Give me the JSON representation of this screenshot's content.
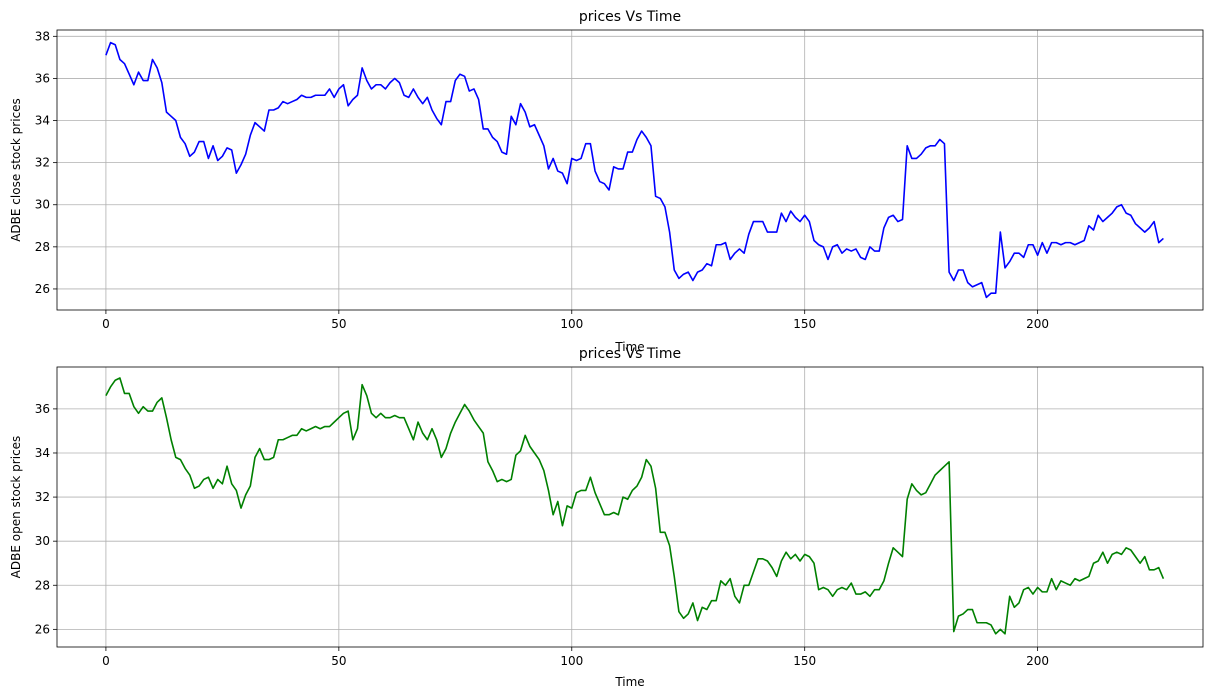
{
  "chart_data": [
    {
      "type": "line",
      "title": "prices Vs Time",
      "xlabel": "Time",
      "ylabel": "ADBE close stock prices",
      "xlim": [
        -10.5,
        235.5
      ],
      "ylim": [
        25.0,
        38.3
      ],
      "xticks": [
        0,
        50,
        100,
        150,
        200
      ],
      "yticks": [
        26,
        28,
        30,
        32,
        34,
        36,
        38
      ],
      "grid": true,
      "series": [
        {
          "color": "#0000ff",
          "x_start": 0,
          "values": [
            37.1,
            37.7,
            37.6,
            36.9,
            36.7,
            36.2,
            35.7,
            36.3,
            35.9,
            35.9,
            36.9,
            36.5,
            35.8,
            34.4,
            34.2,
            34.0,
            33.2,
            32.9,
            32.3,
            32.5,
            33.0,
            33.0,
            32.2,
            32.8,
            32.1,
            32.3,
            32.7,
            32.6,
            31.5,
            31.9,
            32.4,
            33.3,
            33.9,
            33.7,
            33.5,
            34.5,
            34.5,
            34.6,
            34.9,
            34.8,
            34.9,
            35.0,
            35.2,
            35.1,
            35.1,
            35.2,
            35.2,
            35.2,
            35.5,
            35.1,
            35.5,
            35.7,
            34.7,
            35.0,
            35.2,
            36.5,
            35.9,
            35.5,
            35.7,
            35.7,
            35.5,
            35.8,
            36.0,
            35.8,
            35.2,
            35.1,
            35.5,
            35.1,
            34.8,
            35.1,
            34.5,
            34.1,
            33.8,
            34.9,
            34.9,
            35.9,
            36.2,
            36.1,
            35.4,
            35.5,
            35.0,
            33.6,
            33.6,
            33.2,
            33.0,
            32.5,
            32.4,
            34.2,
            33.8,
            34.8,
            34.4,
            33.7,
            33.8,
            33.3,
            32.8,
            31.7,
            32.2,
            31.6,
            31.5,
            31.0,
            32.2,
            32.1,
            32.2,
            32.9,
            32.9,
            31.6,
            31.1,
            31.0,
            30.7,
            31.8,
            31.7,
            31.7,
            32.5,
            32.5,
            33.1,
            33.5,
            33.2,
            32.8,
            30.4,
            30.3,
            29.9,
            28.7,
            26.9,
            26.5,
            26.7,
            26.8,
            26.4,
            26.8,
            26.9,
            27.2,
            27.1,
            28.1,
            28.1,
            28.2,
            27.4,
            27.7,
            27.9,
            27.7,
            28.6,
            29.2,
            29.2,
            29.2,
            28.7,
            28.7,
            28.7,
            29.6,
            29.2,
            29.7,
            29.4,
            29.2,
            29.5,
            29.2,
            28.3,
            28.1,
            28.0,
            27.4,
            28.0,
            28.1,
            27.7,
            27.9,
            27.8,
            27.9,
            27.5,
            27.4,
            28.0,
            27.8,
            27.8,
            28.9,
            29.4,
            29.5,
            29.2,
            29.3,
            32.8,
            32.2,
            32.2,
            32.4,
            32.7,
            32.8,
            32.8,
            33.1,
            32.9,
            26.8,
            26.4,
            26.9,
            26.9,
            26.3,
            26.1,
            26.2,
            26.3,
            25.6,
            25.8,
            25.8,
            28.7,
            27.0,
            27.3,
            27.7,
            27.7,
            27.5,
            28.1,
            28.1,
            27.6,
            28.2,
            27.7,
            28.2,
            28.2,
            28.1,
            28.2,
            28.2,
            28.1,
            28.2,
            28.3,
            29.0,
            28.8,
            29.5,
            29.2,
            29.4,
            29.6,
            29.9,
            30.0,
            29.6,
            29.5,
            29.1,
            28.9,
            28.7,
            28.9,
            29.2,
            28.2,
            28.4
          ]
        }
      ]
    },
    {
      "type": "line",
      "title": "prices Vs Time",
      "xlabel": "Time",
      "ylabel": "ADBE open stock prices",
      "xlim": [
        -10.5,
        235.5
      ],
      "ylim": [
        25.2,
        37.9
      ],
      "xticks": [
        0,
        50,
        100,
        150,
        200
      ],
      "yticks": [
        26,
        28,
        30,
        32,
        34,
        36
      ],
      "grid": true,
      "series": [
        {
          "color": "#008000",
          "x_start": 0,
          "values": [
            36.6,
            37.0,
            37.3,
            37.4,
            36.7,
            36.7,
            36.1,
            35.8,
            36.1,
            35.9,
            35.9,
            36.3,
            36.5,
            35.6,
            34.6,
            33.8,
            33.7,
            33.3,
            33.0,
            32.4,
            32.5,
            32.8,
            32.9,
            32.4,
            32.8,
            32.6,
            33.4,
            32.6,
            32.3,
            31.5,
            32.1,
            32.5,
            33.8,
            34.2,
            33.7,
            33.7,
            33.8,
            34.6,
            34.6,
            34.7,
            34.8,
            34.8,
            35.1,
            35.0,
            35.1,
            35.2,
            35.1,
            35.2,
            35.2,
            35.4,
            35.6,
            35.8,
            35.9,
            34.6,
            35.1,
            37.1,
            36.6,
            35.8,
            35.6,
            35.8,
            35.6,
            35.6,
            35.7,
            35.6,
            35.6,
            35.1,
            34.6,
            35.4,
            34.9,
            34.6,
            35.1,
            34.6,
            33.8,
            34.2,
            34.9,
            35.4,
            35.8,
            36.2,
            35.9,
            35.5,
            35.2,
            34.9,
            33.6,
            33.2,
            32.7,
            32.8,
            32.7,
            32.8,
            33.9,
            34.1,
            34.8,
            34.3,
            34.0,
            33.7,
            33.2,
            32.3,
            31.2,
            31.8,
            30.7,
            31.6,
            31.5,
            32.2,
            32.3,
            32.3,
            32.9,
            32.2,
            31.7,
            31.2,
            31.2,
            31.3,
            31.2,
            32.0,
            31.9,
            32.3,
            32.5,
            32.9,
            33.7,
            33.4,
            32.4,
            30.4,
            30.4,
            29.8,
            28.4,
            26.8,
            26.5,
            26.7,
            27.2,
            26.4,
            27.0,
            26.9,
            27.3,
            27.3,
            28.2,
            28.0,
            28.3,
            27.5,
            27.2,
            28.0,
            28.0,
            28.6,
            29.2,
            29.2,
            29.1,
            28.8,
            28.4,
            29.1,
            29.5,
            29.2,
            29.4,
            29.1,
            29.4,
            29.3,
            29.0,
            27.8,
            27.9,
            27.8,
            27.5,
            27.8,
            27.9,
            27.8,
            28.1,
            27.6,
            27.6,
            27.7,
            27.5,
            27.8,
            27.8,
            28.2,
            29.0,
            29.7,
            29.5,
            29.3,
            31.9,
            32.6,
            32.3,
            32.1,
            32.2,
            32.6,
            33.0,
            33.2,
            33.4,
            33.6,
            25.9,
            26.6,
            26.7,
            26.9,
            26.9,
            26.3,
            26.3,
            26.3,
            26.2,
            25.8,
            26.0,
            25.8,
            27.5,
            27.0,
            27.2,
            27.8,
            27.9,
            27.6,
            27.9,
            27.7,
            27.7,
            28.3,
            27.8,
            28.2,
            28.1,
            28.0,
            28.3,
            28.2,
            28.3,
            28.4,
            29.0,
            29.1,
            29.5,
            29.0,
            29.4,
            29.5,
            29.4,
            29.7,
            29.6,
            29.3,
            29.0,
            29.3,
            28.7,
            28.7,
            28.8,
            28.3
          ]
        }
      ]
    }
  ]
}
